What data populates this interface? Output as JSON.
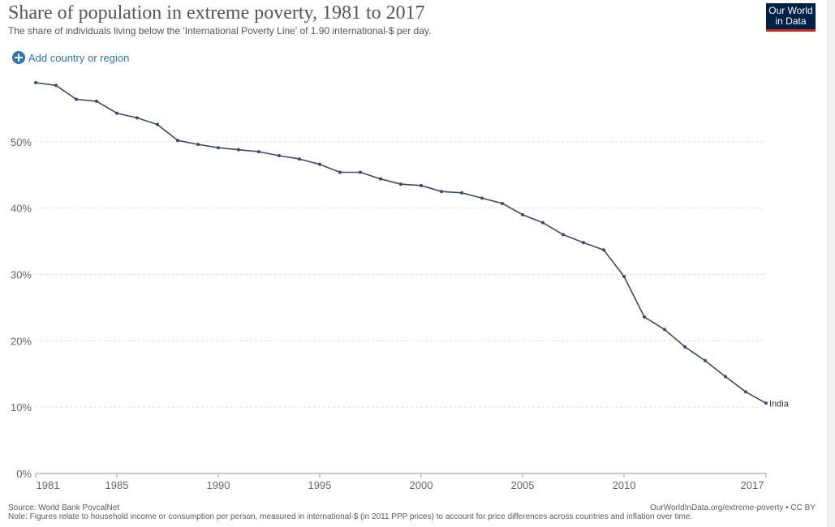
{
  "header": {
    "title": "Share of population in extreme poverty, 1981 to 2017",
    "subtitle": "The share of individuals living below the 'International Poverty Line' of 1.90 international-$ per day."
  },
  "logo": {
    "line1": "Our World",
    "line2": "in Data"
  },
  "controls": {
    "add_label": "Add country or region"
  },
  "footer": {
    "source": "Source: World Bank PovcalNet",
    "note": "Note: Figures relate to household income or consumption per person, measured in international-$ (in 2011 PPP prices) to account for price differences across countries and inflation over time.",
    "url": "OurWorldInData.org/extreme-poverty • CC BY"
  },
  "colors": {
    "series": "#3b4a6b",
    "grid": "#dddddd",
    "axis": "#999999",
    "accent": "#2e75b6"
  },
  "chart_data": {
    "type": "line",
    "title": "Share of population in extreme poverty, 1981 to 2017",
    "xlim": [
      1981,
      2017
    ],
    "ylim": [
      0,
      60
    ],
    "x_ticks": [
      1981,
      1985,
      1990,
      1995,
      2000,
      2005,
      2010,
      2017
    ],
    "y_ticks": [
      0,
      10,
      20,
      30,
      40,
      50
    ],
    "y_tick_labels": [
      "0%",
      "10%",
      "20%",
      "30%",
      "40%",
      "50%"
    ],
    "grid": "horizontal dashed",
    "series": [
      {
        "name": "India",
        "x": [
          1981,
          1982,
          1983,
          1984,
          1985,
          1986,
          1987,
          1988,
          1989,
          1990,
          1991,
          1992,
          1993,
          1994,
          1995,
          1996,
          1997,
          1998,
          1999,
          2000,
          2001,
          2002,
          2003,
          2004,
          2005,
          2006,
          2007,
          2008,
          2009,
          2010,
          2011,
          2012,
          2013,
          2014,
          2015,
          2016,
          2017
        ],
        "y": [
          58.9,
          58.5,
          56.4,
          56.1,
          54.3,
          53.6,
          52.6,
          50.2,
          49.6,
          49.1,
          48.8,
          48.5,
          47.9,
          47.4,
          46.6,
          45.4,
          45.4,
          44.4,
          43.6,
          43.4,
          42.5,
          42.3,
          41.5,
          40.7,
          39.0,
          37.8,
          36.0,
          34.8,
          33.7,
          29.7,
          23.6,
          21.7,
          19.1,
          17.0,
          14.6,
          12.3,
          10.6
        ]
      }
    ]
  }
}
